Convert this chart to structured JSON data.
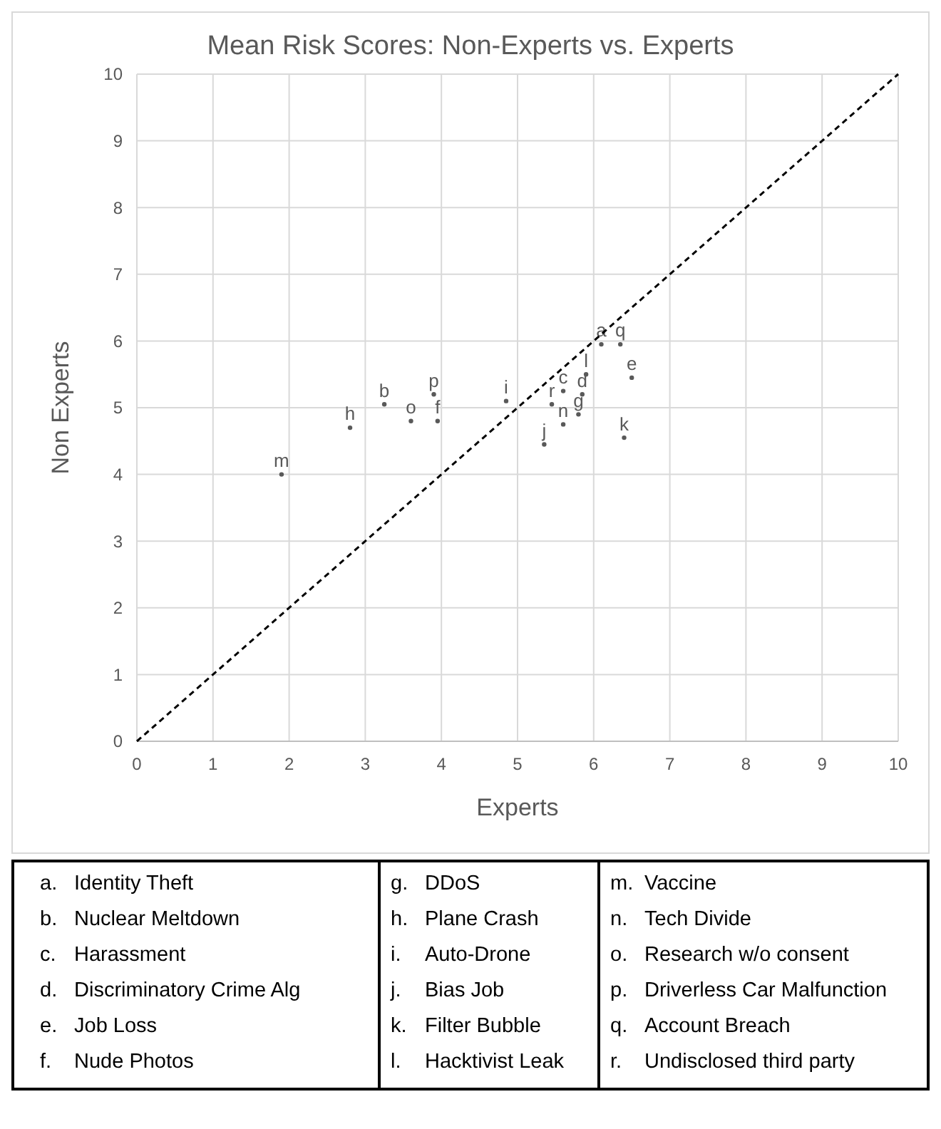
{
  "chart_data": {
    "type": "scatter",
    "title": "Mean Risk Scores: Non-Experts vs. Experts",
    "xlabel": "Experts",
    "ylabel": "Non Experts",
    "xlim": [
      0,
      10
    ],
    "ylim": [
      0,
      10
    ],
    "xticks": [
      0,
      1,
      2,
      3,
      4,
      5,
      6,
      7,
      8,
      9,
      10
    ],
    "yticks": [
      0,
      1,
      2,
      3,
      4,
      5,
      6,
      7,
      8,
      9,
      10
    ],
    "grid": true,
    "series": [
      {
        "type": "scatter",
        "marker": "circle",
        "color": "#595959",
        "x": [
          6.1,
          3.25,
          5.6,
          5.85,
          6.5,
          3.95,
          5.8,
          2.8,
          4.85,
          5.35,
          6.4,
          5.9,
          1.9,
          5.6,
          3.6,
          3.9,
          6.35,
          5.45
        ],
        "values": [
          5.95,
          5.05,
          5.25,
          5.2,
          5.45,
          4.8,
          4.9,
          4.7,
          5.1,
          4.45,
          4.55,
          5.5,
          4.0,
          4.75,
          4.8,
          5.2,
          5.95,
          5.05
        ],
        "value_labels": [
          "a",
          "b",
          "c",
          "d",
          "e",
          "f",
          "g",
          "h",
          "i",
          "j",
          "k",
          "l",
          "m",
          "n",
          "o",
          "p",
          "q",
          "r"
        ]
      },
      {
        "type": "line",
        "color": "#000000",
        "line_style": "dashed",
        "x": [
          0,
          10
        ],
        "values": [
          0,
          10
        ]
      }
    ],
    "annotations": [
      "a. Identity Theft",
      "b. Nuclear Meltdown",
      "c. Harassment",
      "d. Discriminatory Crime Alg",
      "e. Job Loss",
      "f. Nude Photos",
      "g. DDoS",
      "h. Plane Crash",
      "i. Auto-Drone",
      "j. Bias Job",
      "k. Filter Bubble",
      "l. Hacktivist Leak",
      "m. Vaccine",
      "n. Tech Divide",
      "o. Research w/o consent",
      "p. Driverless Car Malfunction",
      "q. Account Breach",
      "r. Undisclosed third party"
    ]
  }
}
